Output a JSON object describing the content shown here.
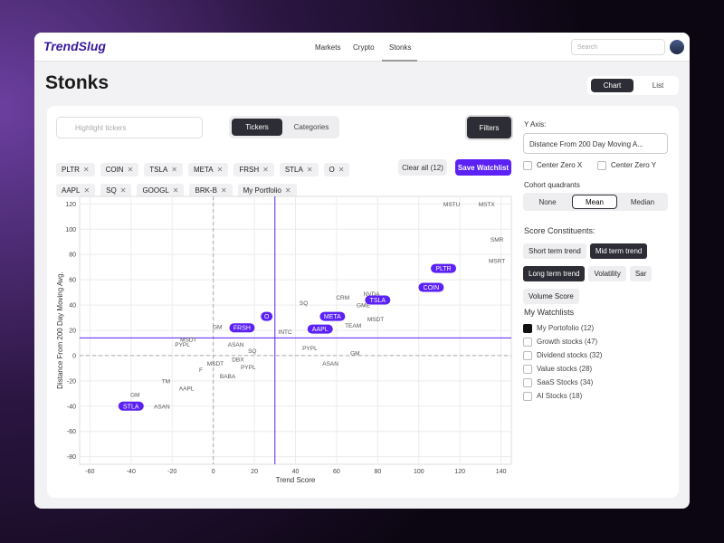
{
  "header": {
    "logo": "TrendSlug",
    "nav": [
      "Markets",
      "Crypto",
      "Stonks"
    ],
    "search": "Search"
  },
  "page": {
    "title": "Stonks",
    "views": [
      "Chart",
      "List"
    ]
  },
  "toolbar": {
    "search": "Highlight tickers",
    "tabs": [
      "Tickers",
      "Categories"
    ],
    "filters": "Filters",
    "chips": [
      "PLTR",
      "COIN",
      "TSLA",
      "META",
      "FRSH",
      "STLA",
      "O",
      "AAPL",
      "SQ",
      "GOOGL",
      "BRK-B",
      "My Portfolio"
    ],
    "clear_all": "Clear all (12)",
    "save": "Save Watchlist"
  },
  "sidebar": {
    "y_axis_label": "Y Axis:",
    "y_axis_value": "Distance From 200 Day Moving A...",
    "center": [
      "Center Zero X",
      "Center Zero Y"
    ],
    "quadrants_label": "Cohort quadrants",
    "quadrants": [
      "None",
      "Mean",
      "Median"
    ],
    "constituents_label": "Score Constituents:",
    "constituents": [
      "Short term trend",
      "Mid term trend",
      "Long term trend",
      "Volatility",
      "Sar",
      "Volume Score"
    ],
    "watchlists_label": "My Watchlists",
    "watchlists": [
      "My Portofolio (12)",
      "Growth stocks (47)",
      "Dividend stocks (32)",
      "Value stocks (28)",
      "SaaS Stocks (34)",
      "AI Stocks (18)"
    ]
  },
  "chart_data": {
    "type": "scatter",
    "xlabel": "Trend Score",
    "ylabel": "Distance From 200 Day Moving Avg.",
    "xlim": [
      -65,
      145
    ],
    "ylim": [
      -86,
      126
    ],
    "xticks": [
      -60,
      -40,
      -20,
      0,
      20,
      40,
      60,
      80,
      100,
      120,
      140
    ],
    "yticks": [
      -80,
      -60,
      -40,
      -20,
      0,
      20,
      40,
      60,
      80,
      100,
      120
    ],
    "grid": true,
    "mean": {
      "x": 30,
      "y": 14
    },
    "series": [
      {
        "color": "#5b21f5",
        "labels": [
          "PLTR",
          "COIN",
          "TSLA",
          "META",
          "O",
          "FRSH",
          "AAPL",
          "STLA"
        ],
        "x": [
          112,
          106,
          80,
          58,
          26,
          14,
          52,
          -40
        ],
        "values": [
          69,
          54,
          44,
          31,
          31,
          22,
          21,
          -40
        ]
      },
      {
        "color": "#555555",
        "labels": [
          "MSTU",
          "MSTX",
          "SMR",
          "MSRT",
          "NVDA",
          "CRM",
          "SQ",
          "GME",
          "MSDT",
          "TEAM",
          "GM",
          "INTC",
          "MSDT",
          "PYPL",
          "ASAN",
          "SQ",
          "PYPL",
          "GM",
          "DBX",
          "MSDT",
          "ASAN",
          "PYPL",
          "F",
          "BABA",
          "TM",
          "AAPL",
          "GM",
          "ASAN"
        ],
        "x": [
          116,
          133,
          138,
          138,
          77,
          63,
          44,
          73,
          79,
          68,
          2,
          35,
          -12,
          -15,
          11,
          19,
          47,
          69,
          12,
          1,
          57,
          17,
          -6,
          7,
          -23,
          -13,
          -38,
          -25
        ],
        "values": [
          120,
          120,
          92,
          75,
          49,
          46,
          42,
          40,
          29,
          24,
          23,
          19,
          13,
          9,
          9,
          4,
          6,
          2,
          -3,
          -6,
          -6,
          -9,
          -11,
          -16,
          -20,
          -26,
          -31,
          -40
        ]
      }
    ]
  }
}
